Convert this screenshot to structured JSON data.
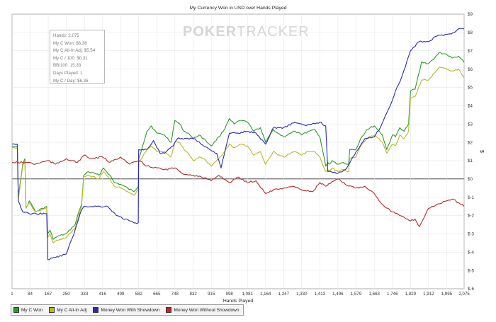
{
  "chart_data": {
    "type": "line",
    "title": "My Currency Won in USD over Hands Played",
    "xlabel": "Hands Played",
    "ylabel": "$",
    "x_ticks": [
      "1",
      "84",
      "167",
      "250",
      "333",
      "416",
      "499",
      "582",
      "665",
      "748",
      "832",
      "915",
      "998",
      "1,081",
      "1,164",
      "1,247",
      "1,330",
      "1,413",
      "1,496",
      "1,579",
      "1,663",
      "1,746",
      "1,829",
      "1,912",
      "1,995",
      "2,075"
    ],
    "x_range": [
      1,
      2075
    ],
    "y_ticks": [
      "$-6",
      "$-5",
      "$-4",
      "$-3",
      "$-2",
      "$-1",
      "$0",
      "$1",
      "$2",
      "$3",
      "$4",
      "$5",
      "$6",
      "$7",
      "$8",
      "$9"
    ],
    "y_range": [
      -6,
      9
    ],
    "grid": true,
    "legend_position": "bottom",
    "series": [
      {
        "name": "My C Won",
        "color": "#2a9c2a",
        "x": [
          1,
          25,
          30,
          50,
          60,
          65,
          80,
          95,
          110,
          160,
          165,
          175,
          190,
          200,
          220,
          250,
          290,
          310,
          320,
          330,
          350,
          400,
          420,
          450,
          470,
          500,
          560,
          580,
          582,
          600,
          620,
          640,
          665,
          700,
          730,
          748,
          770,
          790,
          810,
          832,
          860,
          880,
          915,
          950,
          970,
          998,
          1020,
          1050,
          1081,
          1110,
          1140,
          1164,
          1200,
          1220,
          1247,
          1280,
          1300,
          1330,
          1360,
          1390,
          1413,
          1440,
          1450,
          1455,
          1470,
          1496,
          1520,
          1545,
          1550,
          1579,
          1600,
          1630,
          1663,
          1700,
          1720,
          1746,
          1760,
          1780,
          1800,
          1820,
          1829,
          1850,
          1880,
          1912,
          1940,
          1960,
          1995,
          2020,
          2050,
          2075
        ],
        "y": [
          1.8,
          1.8,
          -1.0,
          0.8,
          1.1,
          -1.6,
          -1.2,
          -1.5,
          -1.8,
          -1.5,
          -3.0,
          -2.8,
          -3.3,
          -3.2,
          -3.1,
          -3.0,
          -2.5,
          -1.7,
          -1.4,
          0.2,
          0.4,
          0.2,
          0.6,
          0.2,
          -0.2,
          -0.3,
          -0.7,
          -0.4,
          1.1,
          1.8,
          2.6,
          2.9,
          2.5,
          2.4,
          2.0,
          3.2,
          3.0,
          2.6,
          2.5,
          2.2,
          2.4,
          2.2,
          1.8,
          2.3,
          2.6,
          3.3,
          3.0,
          3.2,
          3.1,
          2.6,
          2.8,
          2.0,
          2.7,
          2.5,
          2.3,
          2.5,
          2.6,
          2.4,
          2.6,
          2.7,
          2.3,
          0.7,
          0.9,
          0.8,
          1.0,
          0.8,
          0.9,
          0.8,
          1.6,
          1.6,
          2.2,
          2.7,
          2.9,
          2.4,
          1.6,
          2.4,
          2.3,
          2.8,
          2.6,
          3.0,
          4.8,
          4.9,
          6.4,
          6.3,
          6.6,
          6.9,
          6.8,
          6.6,
          6.7,
          6.36
        ]
      },
      {
        "name": "My C All-In Adj",
        "color": "#b8b828",
        "x": [
          1,
          25,
          30,
          50,
          60,
          65,
          80,
          95,
          110,
          160,
          165,
          175,
          190,
          200,
          220,
          250,
          290,
          310,
          320,
          330,
          350,
          400,
          420,
          450,
          470,
          500,
          560,
          580,
          582,
          600,
          620,
          640,
          665,
          700,
          730,
          748,
          770,
          790,
          810,
          832,
          860,
          880,
          915,
          950,
          970,
          998,
          1020,
          1050,
          1081,
          1110,
          1140,
          1164,
          1200,
          1220,
          1247,
          1280,
          1300,
          1330,
          1360,
          1390,
          1413,
          1440,
          1450,
          1455,
          1470,
          1496,
          1520,
          1545,
          1550,
          1579,
          1600,
          1630,
          1663,
          1700,
          1720,
          1746,
          1760,
          1780,
          1800,
          1820,
          1829,
          1850,
          1880,
          1912,
          1940,
          1960,
          1995,
          2020,
          2050,
          2075
        ],
        "y": [
          1.7,
          1.7,
          -1.1,
          0.7,
          1.0,
          -1.6,
          -1.3,
          -1.6,
          -1.8,
          -1.6,
          -3.2,
          -3.0,
          -3.5,
          -3.4,
          -3.3,
          -3.2,
          -2.7,
          -1.9,
          -1.5,
          0.1,
          0.2,
          0.0,
          0.4,
          0.0,
          -0.4,
          -0.5,
          -0.9,
          -0.6,
          0.9,
          1.2,
          1.6,
          1.8,
          1.5,
          1.5,
          1.2,
          2.0,
          2.0,
          1.6,
          1.4,
          1.0,
          1.2,
          1.1,
          0.7,
          1.1,
          1.4,
          1.9,
          1.7,
          1.9,
          1.8,
          1.3,
          1.5,
          0.8,
          1.5,
          1.3,
          1.2,
          1.4,
          1.5,
          1.3,
          1.5,
          1.5,
          1.2,
          0.4,
          0.5,
          0.4,
          0.6,
          0.4,
          0.5,
          0.4,
          1.1,
          1.2,
          1.8,
          2.2,
          2.4,
          2.0,
          1.4,
          1.9,
          1.8,
          2.4,
          2.2,
          2.6,
          4.4,
          4.5,
          5.4,
          5.4,
          5.8,
          6.1,
          6.0,
          5.9,
          6.0,
          5.54
        ]
      },
      {
        "name": "Money Won With Showdown",
        "color": "#2a2ab8",
        "x": [
          1,
          25,
          30,
          50,
          80,
          160,
          165,
          200,
          250,
          290,
          320,
          330,
          440,
          480,
          560,
          580,
          582,
          620,
          650,
          680,
          700,
          740,
          760,
          800,
          840,
          880,
          940,
          960,
          998,
          1040,
          1080,
          1120,
          1164,
          1200,
          1247,
          1300,
          1350,
          1413,
          1440,
          1450,
          1496,
          1530,
          1580,
          1620,
          1663,
          1690,
          1720,
          1746,
          1760,
          1790,
          1829,
          1870,
          1912,
          1950,
          1995,
          2030,
          2050,
          2075
        ],
        "y": [
          1.9,
          1.9,
          -1.2,
          -1.8,
          -1.9,
          -1.9,
          -4.4,
          -4.3,
          -4.1,
          -2.8,
          -1.7,
          -1.5,
          -1.5,
          -2.0,
          -2.4,
          -2.4,
          1.6,
          1.6,
          2.1,
          1.4,
          1.4,
          1.8,
          2.2,
          2.2,
          2.2,
          1.8,
          1.4,
          0.6,
          2.5,
          2.5,
          2.6,
          2.5,
          1.9,
          2.8,
          2.8,
          3.1,
          2.9,
          3.1,
          2.9,
          0.4,
          0.3,
          0.5,
          1.5,
          2.2,
          2.3,
          2.8,
          3.6,
          4.3,
          4.8,
          5.6,
          7.0,
          7.5,
          7.5,
          7.8,
          7.9,
          8.0,
          8.2,
          8.2
        ]
      },
      {
        "name": "Money Won Without Showdown",
        "color": "#b82a2a",
        "x": [
          1,
          84,
          100,
          167,
          200,
          250,
          300,
          333,
          360,
          416,
          450,
          499,
          540,
          582,
          620,
          665,
          700,
          748,
          780,
          832,
          870,
          915,
          950,
          998,
          1040,
          1081,
          1120,
          1164,
          1200,
          1247,
          1290,
          1330,
          1380,
          1413,
          1440,
          1496,
          1530,
          1579,
          1620,
          1663,
          1700,
          1746,
          1780,
          1829,
          1850,
          1870,
          1912,
          1950,
          1995,
          2020,
          2050,
          2075
        ],
        "y": [
          0.9,
          0.9,
          0.8,
          1.0,
          0.8,
          1.1,
          0.9,
          1.3,
          1.1,
          1.2,
          0.9,
          1.2,
          0.8,
          1.0,
          0.7,
          0.6,
          0.5,
          0.6,
          0.3,
          0.2,
          0.1,
          -0.1,
          0.2,
          -0.2,
          0.1,
          -0.2,
          -0.1,
          -0.8,
          -0.6,
          -0.5,
          -0.4,
          -0.6,
          -0.7,
          -0.2,
          -0.4,
          0.0,
          -0.3,
          -0.5,
          -0.4,
          -0.8,
          -1.4,
          -1.8,
          -2.0,
          -2.3,
          -2.2,
          -2.6,
          -1.6,
          -1.4,
          -1.2,
          -1.1,
          -1.3,
          -1.5
        ]
      }
    ]
  },
  "stats": [
    "Hands: 2,075",
    "My C Won: $6.36",
    "My C All-In Adj: $5.54",
    "My C / 100: $0.31",
    "BB/100: 15.33",
    "Days Played: 1",
    "My C / Day: $6.36"
  ],
  "watermark": {
    "part1": "POKER",
    "part2": "TRACKER"
  },
  "legend": [
    {
      "label": "My C Won",
      "color": "#2a9c2a"
    },
    {
      "label": "My C All-In Adj",
      "color": "#b8b828"
    },
    {
      "label": "Money Won With Showdown",
      "color": "#2a2ab8"
    },
    {
      "label": "Money Won Without Showdown",
      "color": "#b82a2a"
    }
  ]
}
